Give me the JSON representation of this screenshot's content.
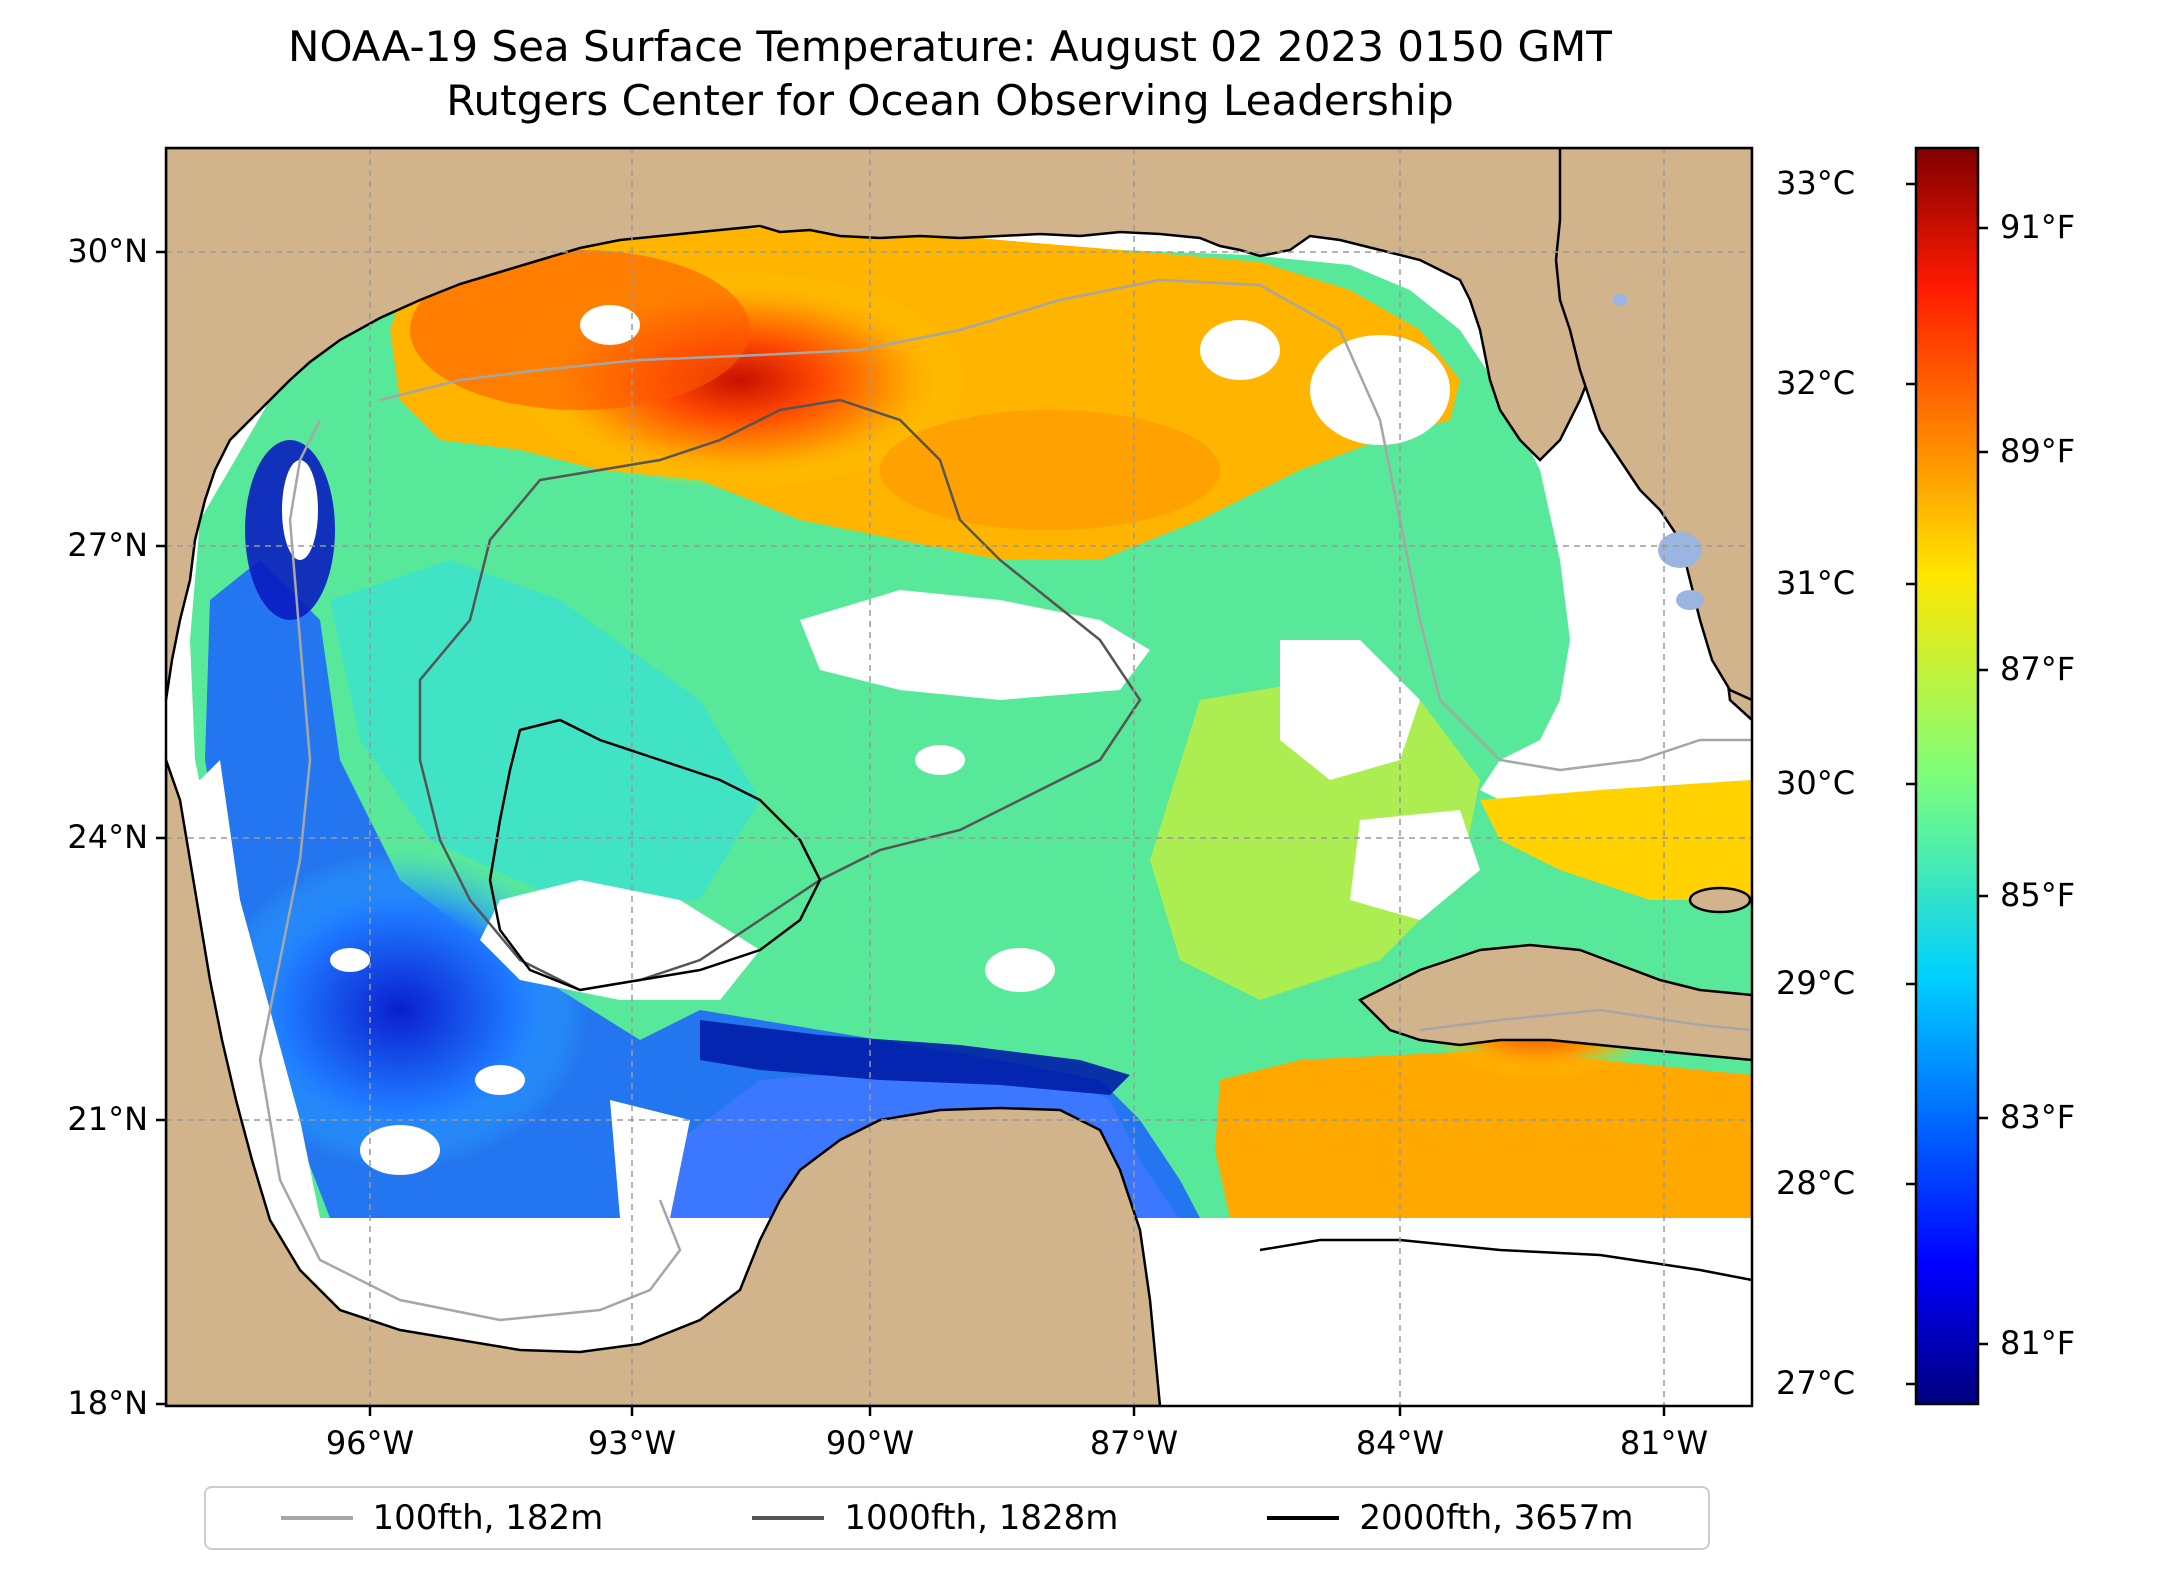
{
  "title": {
    "line1": "NOAA-19 Sea Surface Temperature: August 02 2023 0150 GMT",
    "line2": "Rutgers Center for Ocean Observing Leadership"
  },
  "map": {
    "lat_ticks": [
      "30°N",
      "27°N",
      "24°N",
      "21°N",
      "18°N"
    ],
    "lon_ticks": [
      "96°W",
      "93°W",
      "90°W",
      "87°W",
      "84°W",
      "81°W"
    ],
    "lat_range": [
      18,
      31
    ],
    "lon_range": [
      -98.2,
      -80.2
    ],
    "land_color": "#d2b48c",
    "lake_color": "#9ab6e0"
  },
  "colorbar": {
    "celsius_labels": [
      "33°C",
      "32°C",
      "31°C",
      "30°C",
      "29°C",
      "28°C",
      "27°C"
    ],
    "fahrenheit_labels": [
      "91°F",
      "89°F",
      "87°F",
      "85°F",
      "83°F",
      "81°F"
    ],
    "colormap": "jet"
  },
  "legend": {
    "items": [
      {
        "label": "100fth, 182m",
        "color": "#a6a6a6"
      },
      {
        "label": "1000fth, 1828m",
        "color": "#555555"
      },
      {
        "label": "2000fth, 3657m",
        "color": "#000000"
      }
    ]
  }
}
